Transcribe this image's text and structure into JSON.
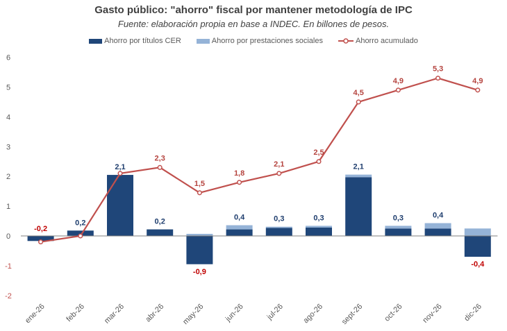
{
  "chart_data": {
    "type": "bar+line",
    "title": "Gasto público: \"ahorro\" fiscal por mantener metodología de IPC",
    "subtitle": "Fuente: elaboración propia en base a INDEC. En billones de pesos.",
    "categories": [
      "ene-26",
      "feb-26",
      "mar-26",
      "abr-26",
      "may-26",
      "jun-26",
      "jul-26",
      "ago-26",
      "sept-26",
      "oct-26",
      "nov-26",
      "dic-26"
    ],
    "series": [
      {
        "name": "Ahorro por títulos CER",
        "type": "bar",
        "stacked": true,
        "color": "#1f4679",
        "values": [
          -0.17,
          0.18,
          2.05,
          0.22,
          -0.95,
          0.22,
          0.27,
          0.28,
          1.97,
          0.25,
          0.25,
          -0.7
        ]
      },
      {
        "name": "Ahorro por prestaciones sociales",
        "type": "bar",
        "stacked": true,
        "color": "#95b3d7",
        "values": [
          0,
          0,
          0,
          0,
          0.07,
          0.14,
          0.04,
          0.06,
          0.09,
          0.09,
          0.18,
          0.25
        ]
      },
      {
        "name": "Ahorro acumulado",
        "type": "line",
        "color": "#c0504d",
        "values": [
          -0.2,
          0.0,
          2.1,
          2.3,
          1.45,
          1.8,
          2.1,
          2.5,
          4.5,
          4.9,
          5.3,
          4.9
        ]
      }
    ],
    "bar_labels": [
      "-0,2",
      "0,2",
      "2,1",
      "0,2",
      "-0,9",
      "0,4",
      "0,3",
      "0,3",
      "2,1",
      "0,3",
      "0,4",
      "-0,4"
    ],
    "line_labels": [
      "",
      "",
      "",
      "2,3",
      "1,5",
      "1,8",
      "2,1",
      "2,5",
      "4,5",
      "4,9",
      "5,3",
      "4,9"
    ],
    "line_label_first": "-0,2",
    "yticks": [
      "6",
      "5",
      "4",
      "3",
      "2",
      "1",
      "0",
      "-1",
      "-2"
    ],
    "ylim": [
      -2,
      6
    ],
    "grid": false,
    "legend": "top",
    "label_colors": {
      "bar_positive": "#1f3e6e",
      "negative": "#c00000",
      "line": "#b5443f"
    }
  }
}
